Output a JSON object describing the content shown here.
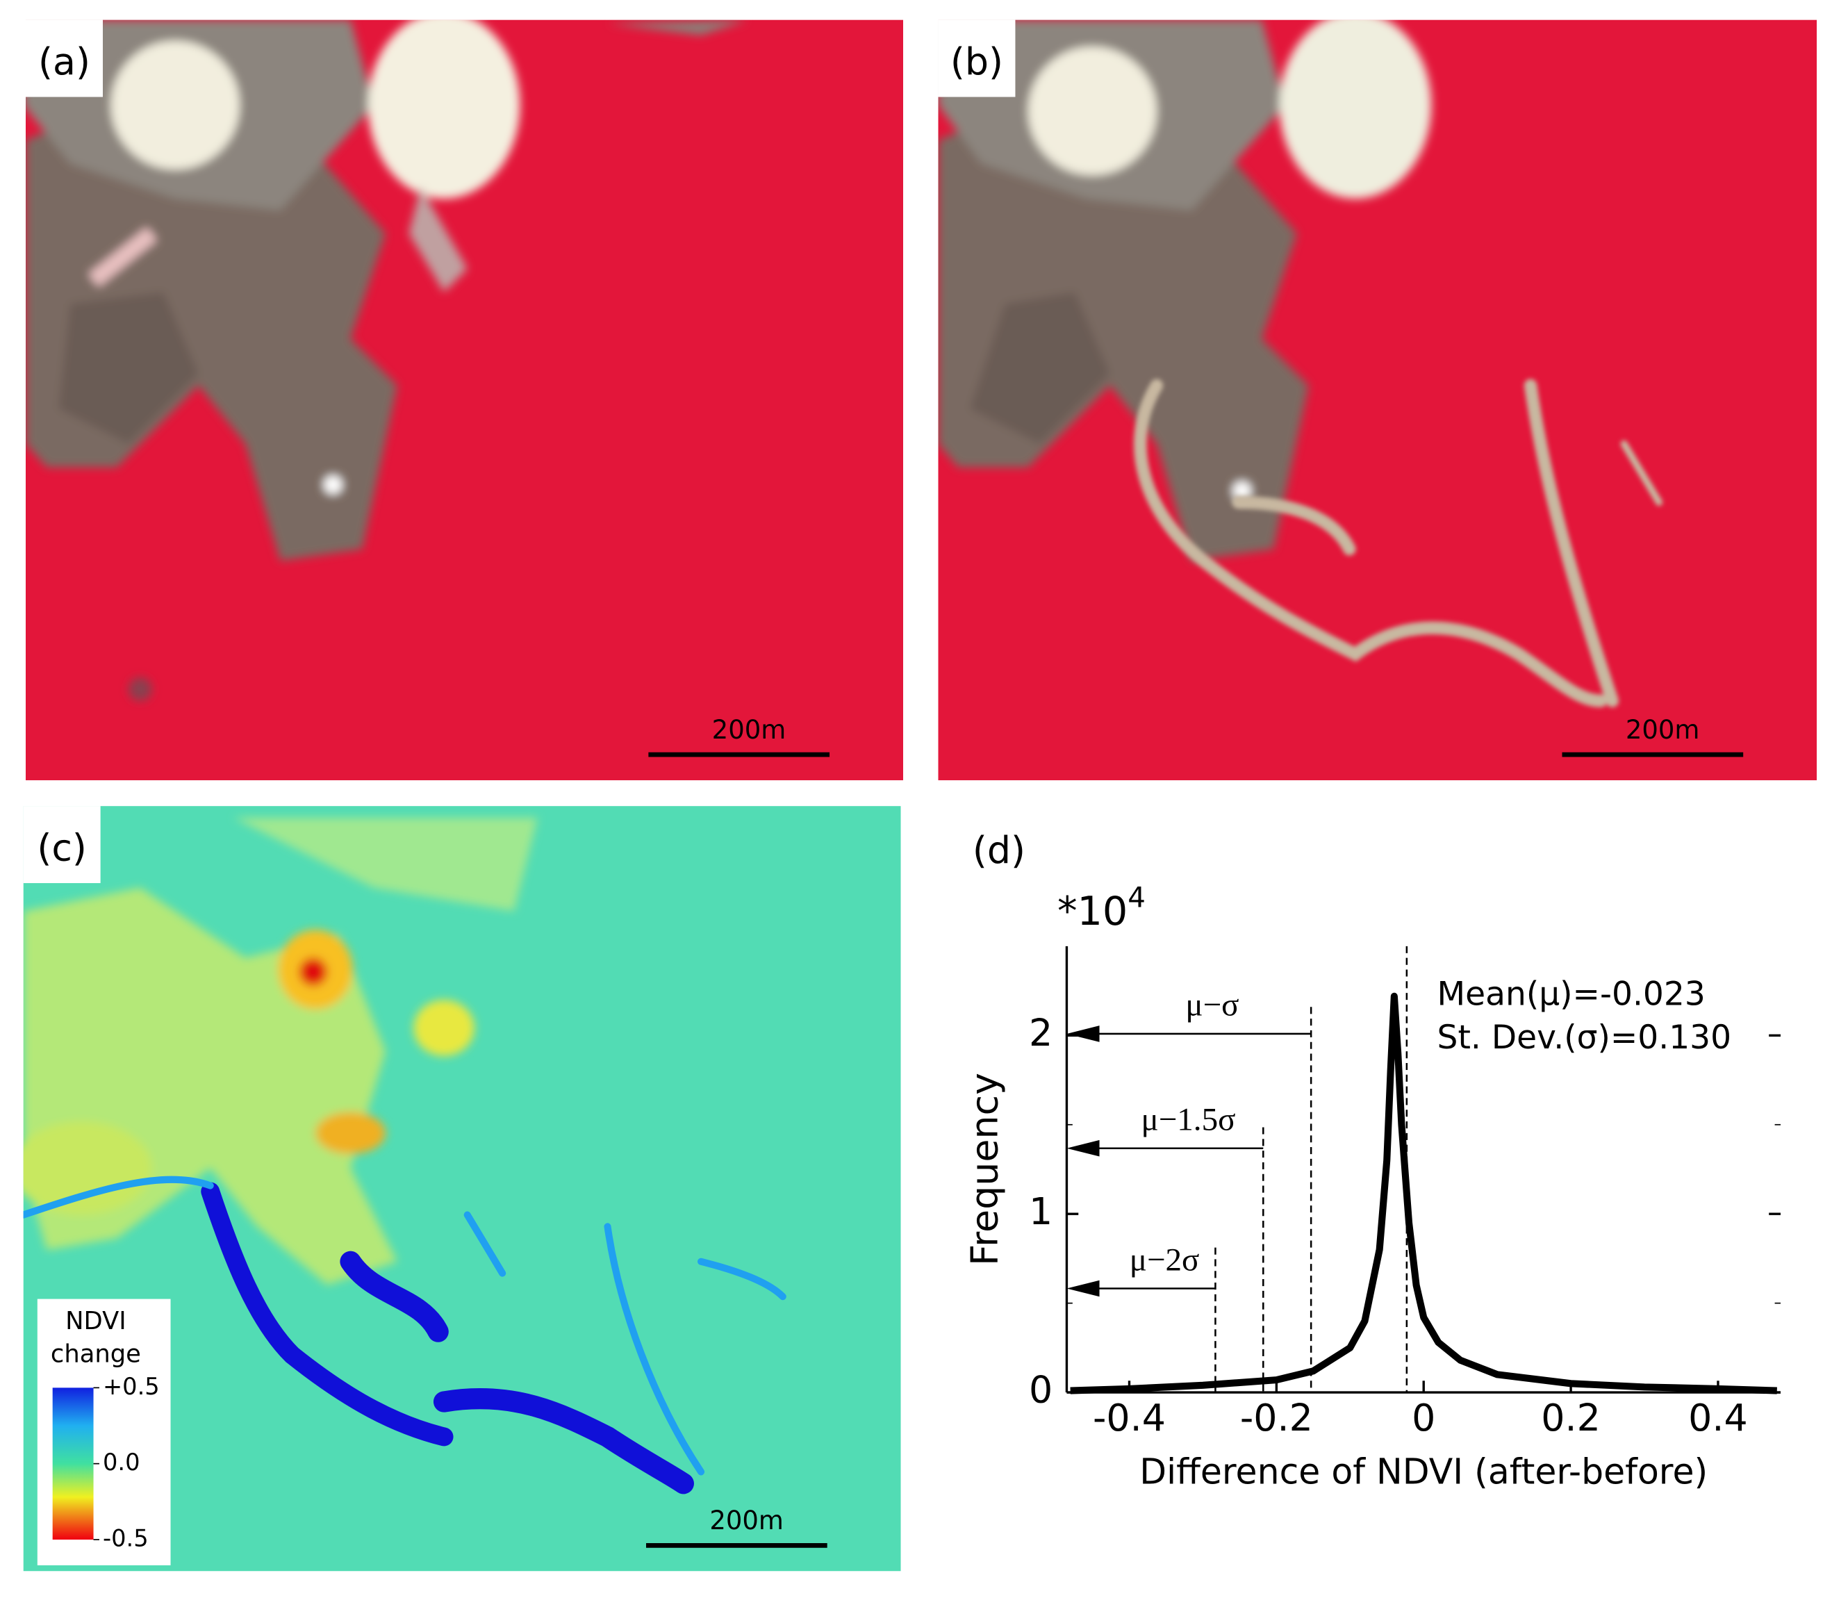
{
  "panels": [
    {
      "label": "(a)",
      "scale_bar": "200m"
    },
    {
      "label": "(b)",
      "scale_bar": "200m"
    },
    {
      "label": "(c)",
      "scale_bar": "200m",
      "legend": {
        "title": [
          "NDVI",
          "change"
        ],
        "ticks": [
          {
            "value": 0.5,
            "label": "+0.5"
          },
          {
            "value": 0,
            "label": "0.0"
          },
          {
            "value": -0.5,
            "label": "-0.5"
          }
        ]
      }
    }
  ],
  "chart_data": {
    "type": "line",
    "panel_label": "(d)",
    "y_multiplier": {
      "base": "*10",
      "exponent": "4"
    },
    "xlabel": "Difference of NDVI (after-before)",
    "ylabel": "Frequency",
    "x": [
      -0.48,
      -0.4,
      -0.3,
      -0.2,
      -0.15,
      -0.1,
      -0.08,
      -0.06,
      -0.05,
      -0.045,
      -0.04,
      -0.035,
      -0.03,
      -0.02,
      -0.01,
      0,
      0.02,
      0.05,
      0.1,
      0.2,
      0.3,
      0.4,
      0.48
    ],
    "values": [
      0.01,
      0.02,
      0.04,
      0.07,
      0.12,
      0.25,
      0.4,
      0.8,
      1.3,
      1.8,
      2.22,
      1.9,
      1.5,
      0.95,
      0.6,
      0.42,
      0.28,
      0.18,
      0.1,
      0.05,
      0.03,
      0.02,
      0.01
    ],
    "color": "#000000",
    "xlim": [
      -0.485,
      0.485
    ],
    "xticks": [
      -0.4,
      -0.2,
      0,
      0.2,
      0.4
    ],
    "ylim": [
      0,
      2.5
    ],
    "yticks": [
      0,
      1,
      2
    ],
    "reference_lines": [
      {
        "x": -0.023
      },
      {
        "x": -0.153,
        "label": "μ−σ"
      },
      {
        "x": -0.218,
        "label": "μ−1.5σ"
      },
      {
        "x": -0.283,
        "label": "μ−2σ"
      }
    ],
    "annotations": [
      "Mean(μ)=-0.023",
      "St. Dev.(σ)=0.130"
    ]
  }
}
